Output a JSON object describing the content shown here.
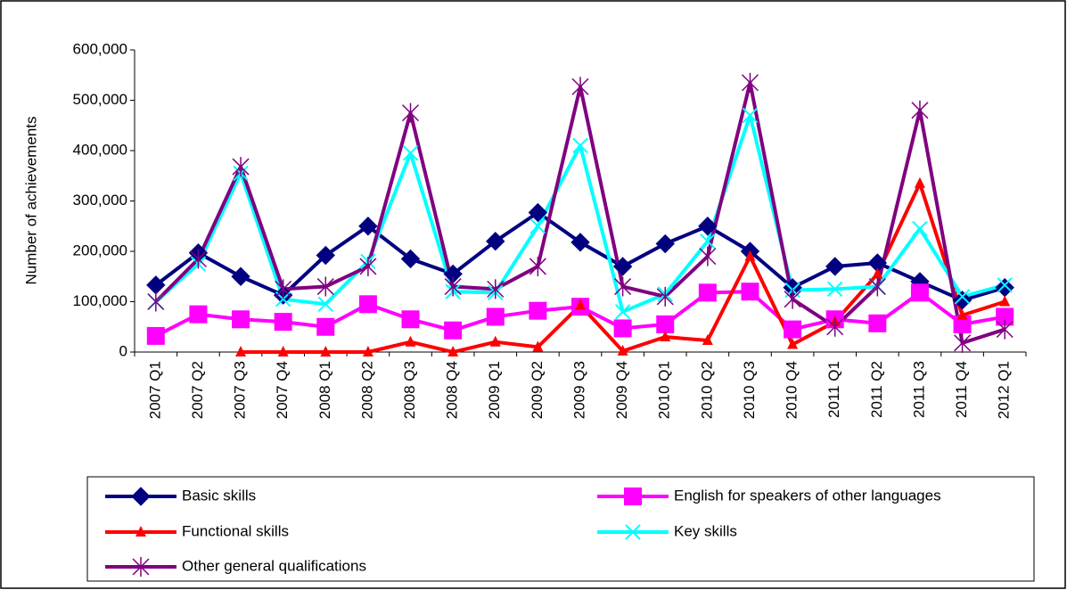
{
  "chart_data": {
    "type": "line",
    "y_label": "Number of achievements",
    "categories": [
      "2007 Q1",
      "2007 Q2",
      "2007 Q3",
      "2007 Q4",
      "2008 Q1",
      "2008 Q2",
      "2008 Q3",
      "2008 Q4",
      "2009 Q1",
      "2009 Q2",
      "2009 Q3",
      "2009 Q4",
      "2010 Q1",
      "2010 Q2",
      "2010 Q3",
      "2010 Q4",
      "2011 Q1",
      "2011 Q2",
      "2011 Q3",
      "2011 Q4",
      "2012 Q1"
    ],
    "series": [
      {
        "name": "Basic skills",
        "color": "#000080",
        "marker": "diamond",
        "values": [
          133000,
          197000,
          150000,
          113000,
          192000,
          250000,
          185000,
          155000,
          220000,
          277000,
          218000,
          170000,
          215000,
          250000,
          200000,
          128000,
          170000,
          177000,
          140000,
          103000,
          128000
        ]
      },
      {
        "name": "English for speakers of other languages",
        "color": "#ff00ff",
        "marker": "square",
        "values": [
          32000,
          75000,
          65000,
          60000,
          50000,
          95000,
          65000,
          43000,
          70000,
          82000,
          90000,
          47000,
          55000,
          118000,
          120000,
          45000,
          65000,
          57000,
          118000,
          55000,
          70000
        ]
      },
      {
        "name": "Functional skills",
        "color": "#ff0000",
        "marker": "triangle",
        "values": [
          null,
          null,
          0,
          0,
          0,
          0,
          20000,
          0,
          20000,
          10000,
          93000,
          2000,
          30000,
          23000,
          190000,
          15000,
          60000,
          155000,
          335000,
          73000,
          100000
        ]
      },
      {
        "name": "Key skills",
        "color": "#00ffff",
        "marker": "x",
        "values": [
          100000,
          175000,
          355000,
          105000,
          95000,
          180000,
          395000,
          120000,
          118000,
          250000,
          410000,
          80000,
          115000,
          220000,
          470000,
          123000,
          125000,
          130000,
          245000,
          110000,
          133000
        ]
      },
      {
        "name": "Other general qualifications",
        "color": "#800080",
        "marker": "asterisk",
        "values": [
          100000,
          185000,
          368000,
          125000,
          130000,
          170000,
          475000,
          130000,
          125000,
          170000,
          527000,
          130000,
          110000,
          190000,
          535000,
          105000,
          50000,
          130000,
          480000,
          18000,
          45000
        ]
      }
    ],
    "ylim": [
      0,
      600000
    ],
    "yticks": [
      0,
      {
        "value": 100000,
        "label": "100,000"
      },
      {
        "value": 200000,
        "label": "200,000"
      },
      {
        "value": 300000,
        "label": "300,000"
      },
      {
        "value": 400000,
        "label": "400,000"
      },
      {
        "value": 500000,
        "label": "500,000"
      },
      {
        "value": 600000,
        "label": "600,000"
      }
    ],
    "grid": false,
    "legend": "bottom"
  }
}
